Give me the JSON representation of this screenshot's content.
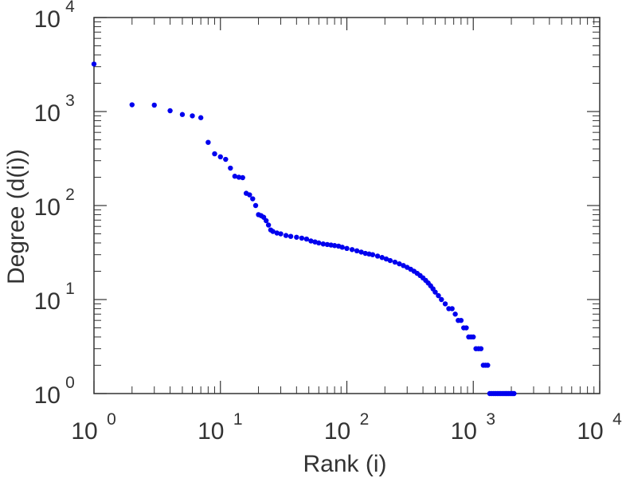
{
  "chart_data": {
    "type": "scatter",
    "title": "",
    "xlabel": "Rank (i)",
    "ylabel": "Degree (d(i))",
    "xscale": "log",
    "yscale": "log",
    "xlim": [
      1,
      10000
    ],
    "ylim": [
      1,
      10000
    ],
    "grid": false,
    "point_color": "#0000ee",
    "axis_color": "#333333",
    "x_ticks": [
      {
        "base": "10",
        "exp": "0",
        "value": 1
      },
      {
        "base": "10",
        "exp": "1",
        "value": 10
      },
      {
        "base": "10",
        "exp": "2",
        "value": 100
      },
      {
        "base": "10",
        "exp": "3",
        "value": 1000
      },
      {
        "base": "10",
        "exp": "4",
        "value": 10000
      }
    ],
    "y_ticks": [
      {
        "base": "10",
        "exp": "0",
        "value": 1
      },
      {
        "base": "10",
        "exp": "1",
        "value": 10
      },
      {
        "base": "10",
        "exp": "2",
        "value": 100
      },
      {
        "base": "10",
        "exp": "3",
        "value": 1000
      },
      {
        "base": "10",
        "exp": "4",
        "value": 10000
      }
    ],
    "points": [
      [
        1,
        3200
      ],
      [
        2,
        1180
      ],
      [
        3,
        1170
      ],
      [
        4,
        1020
      ],
      [
        5,
        930
      ],
      [
        6,
        900
      ],
      [
        7,
        860
      ],
      [
        8,
        470
      ],
      [
        9,
        355
      ],
      [
        10,
        330
      ],
      [
        11,
        310
      ],
      [
        12,
        250
      ],
      [
        13,
        205
      ],
      [
        14,
        200
      ],
      [
        15,
        198
      ],
      [
        16,
        135
      ],
      [
        17,
        130
      ],
      [
        18,
        118
      ],
      [
        19,
        100
      ],
      [
        20,
        80
      ],
      [
        21,
        78
      ],
      [
        22,
        75
      ],
      [
        23,
        69
      ],
      [
        24,
        62
      ],
      [
        25,
        55
      ],
      [
        26,
        53
      ],
      [
        28,
        51
      ],
      [
        30,
        50
      ],
      [
        33,
        48
      ],
      [
        36,
        47
      ],
      [
        40,
        46
      ],
      [
        44,
        45
      ],
      [
        48,
        44
      ],
      [
        52,
        42
      ],
      [
        56,
        41
      ],
      [
        60,
        40
      ],
      [
        65,
        39
      ],
      [
        70,
        38.5
      ],
      [
        75,
        38
      ],
      [
        80,
        37.5
      ],
      [
        86,
        37
      ],
      [
        92,
        36
      ],
      [
        100,
        35
      ],
      [
        110,
        34
      ],
      [
        120,
        33
      ],
      [
        130,
        32
      ],
      [
        140,
        31
      ],
      [
        150,
        30.5
      ],
      [
        160,
        30
      ],
      [
        175,
        29
      ],
      [
        190,
        28
      ],
      [
        205,
        27
      ],
      [
        220,
        26
      ],
      [
        240,
        25
      ],
      [
        260,
        24
      ],
      [
        280,
        23
      ],
      [
        300,
        22
      ],
      [
        320,
        21
      ],
      [
        340,
        20
      ],
      [
        360,
        19
      ],
      [
        380,
        18
      ],
      [
        400,
        17
      ],
      [
        420,
        16
      ],
      [
        440,
        15
      ],
      [
        460,
        14
      ],
      [
        480,
        13
      ],
      [
        500,
        12
      ],
      [
        530,
        11
      ],
      [
        560,
        10
      ],
      [
        600,
        9
      ],
      [
        640,
        8
      ],
      [
        680,
        8
      ],
      [
        720,
        7
      ],
      [
        760,
        6
      ],
      [
        800,
        6
      ],
      [
        840,
        5
      ],
      [
        880,
        5
      ],
      [
        920,
        4
      ],
      [
        960,
        4
      ],
      [
        1000,
        4
      ],
      [
        1050,
        3
      ],
      [
        1100,
        3
      ],
      [
        1150,
        3
      ],
      [
        1200,
        2
      ],
      [
        1250,
        2
      ],
      [
        1300,
        2
      ],
      [
        1350,
        1
      ],
      [
        1400,
        1
      ],
      [
        1450,
        1
      ],
      [
        1500,
        1
      ],
      [
        1550,
        1
      ],
      [
        1600,
        1
      ],
      [
        1650,
        1
      ],
      [
        1700,
        1
      ],
      [
        1750,
        1
      ],
      [
        1800,
        1
      ],
      [
        1850,
        1
      ],
      [
        1900,
        1
      ],
      [
        1950,
        1
      ],
      [
        2000,
        1
      ],
      [
        2050,
        1
      ],
      [
        2100,
        1
      ]
    ]
  }
}
